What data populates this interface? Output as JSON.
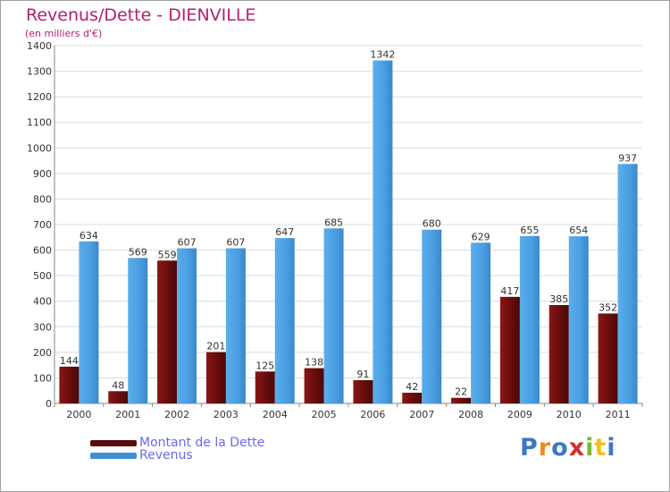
{
  "chart_data": {
    "type": "bar",
    "title": "Revenus/Dette - DIENVILLE",
    "subtitle": "(en milliers d'€)",
    "categories": [
      "2000",
      "2001",
      "2002",
      "2003",
      "2004",
      "2005",
      "2006",
      "2007",
      "2008",
      "2009",
      "2010",
      "2011"
    ],
    "series": [
      {
        "name": "Montant de la Dette",
        "color": "#7a1010",
        "values": [
          144,
          48,
          559,
          201,
          125,
          138,
          91,
          42,
          22,
          417,
          385,
          352
        ]
      },
      {
        "name": "Revenus",
        "color": "#4fa3e6",
        "values": [
          634,
          569,
          607,
          607,
          647,
          685,
          1342,
          680,
          629,
          655,
          654,
          937
        ]
      }
    ],
    "ylim": [
      0,
      1400
    ],
    "yticks": [
      0,
      100,
      200,
      300,
      400,
      500,
      600,
      700,
      800,
      900,
      1000,
      1100,
      1200,
      1300,
      1400
    ],
    "grid": true,
    "legend_position": "bottom-left"
  },
  "logo": {
    "text": "Proxiti",
    "letters": [
      "P",
      "r",
      "o",
      "x",
      "i",
      "t",
      "i"
    ]
  }
}
